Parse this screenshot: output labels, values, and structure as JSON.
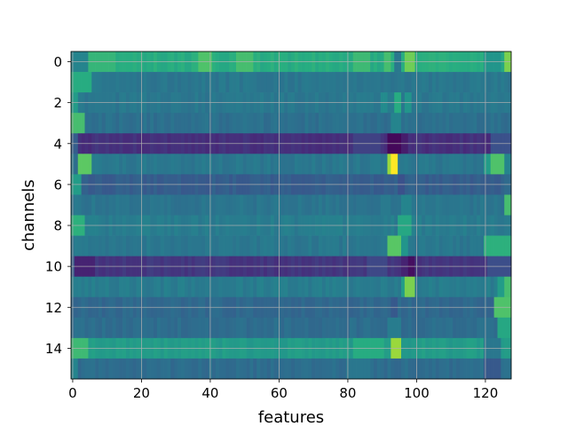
{
  "chart_data": {
    "type": "heatmap",
    "title": "",
    "xlabel": "features",
    "ylabel": "channels",
    "xlim": [
      -0.5,
      127.5
    ],
    "ylim": [
      15.5,
      -0.5
    ],
    "x_ticks": [
      0,
      20,
      40,
      60,
      80,
      100,
      120
    ],
    "y_ticks": [
      0,
      2,
      4,
      6,
      8,
      10,
      12,
      14
    ],
    "grid": true,
    "colormap": "viridis",
    "value_range": [
      0,
      1
    ],
    "n_features": 128,
    "rows": [
      {
        "channel": 0,
        "base": 0.62,
        "features": [
          {
            "x0": 0,
            "x1": 4,
            "v": 0.45
          },
          {
            "x0": 5,
            "x1": 12,
            "v": 0.66
          },
          {
            "x0": 37,
            "x1": 40,
            "v": 0.72
          },
          {
            "x0": 48,
            "x1": 52,
            "v": 0.7
          },
          {
            "x0": 82,
            "x1": 86,
            "v": 0.68
          },
          {
            "x0": 91,
            "x1": 92,
            "v": 0.7
          },
          {
            "x0": 94,
            "x1": 95,
            "v": 0.4
          },
          {
            "x0": 97,
            "x1": 99,
            "v": 0.78
          },
          {
            "x0": 120,
            "x1": 124,
            "v": 0.52
          },
          {
            "x0": 126,
            "x1": 127,
            "v": 0.8
          }
        ]
      },
      {
        "channel": 1,
        "base": 0.4,
        "features": [
          {
            "x0": 0,
            "x1": 5,
            "v": 0.62
          }
        ]
      },
      {
        "channel": 2,
        "base": 0.4,
        "features": [
          {
            "x0": 0,
            "x1": 1,
            "v": 0.55
          },
          {
            "x0": 90,
            "x1": 91,
            "v": 0.48
          },
          {
            "x0": 94,
            "x1": 95,
            "v": 0.62
          },
          {
            "x0": 97,
            "x1": 98,
            "v": 0.52
          }
        ]
      },
      {
        "channel": 3,
        "base": 0.37,
        "features": [
          {
            "x0": 0,
            "x1": 3,
            "v": 0.7
          },
          {
            "x0": 93,
            "x1": 95,
            "v": 0.45
          }
        ]
      },
      {
        "channel": 4,
        "base": 0.14,
        "features": [
          {
            "x0": 0,
            "x1": 1,
            "v": 0.3
          },
          {
            "x0": 82,
            "x1": 89,
            "v": 0.2
          },
          {
            "x0": 92,
            "x1": 95,
            "v": 0.02
          },
          {
            "x0": 96,
            "x1": 97,
            "v": 0.08
          },
          {
            "x0": 122,
            "x1": 127,
            "v": 0.25
          }
        ]
      },
      {
        "channel": 5,
        "base": 0.4,
        "features": [
          {
            "x0": 1,
            "x1": 1,
            "v": 0.35
          },
          {
            "x0": 2,
            "x1": 5,
            "v": 0.75
          },
          {
            "x0": 92,
            "x1": 92,
            "v": 0.85
          },
          {
            "x0": 93,
            "x1": 94,
            "v": 1.0
          },
          {
            "x0": 120,
            "x1": 121,
            "v": 0.55
          },
          {
            "x0": 122,
            "x1": 125,
            "v": 0.72
          },
          {
            "x0": 126,
            "x1": 127,
            "v": 0.45
          }
        ]
      },
      {
        "channel": 6,
        "base": 0.3,
        "features": [
          {
            "x0": 0,
            "x1": 2,
            "v": 0.55
          },
          {
            "x0": 95,
            "x1": 96,
            "v": 0.25
          },
          {
            "x0": 126,
            "x1": 127,
            "v": 0.35
          }
        ]
      },
      {
        "channel": 7,
        "base": 0.39,
        "features": [
          {
            "x0": 96,
            "x1": 98,
            "v": 0.45
          },
          {
            "x0": 126,
            "x1": 127,
            "v": 0.7
          }
        ]
      },
      {
        "channel": 8,
        "base": 0.42,
        "features": [
          {
            "x0": 0,
            "x1": 3,
            "v": 0.64
          },
          {
            "x0": 95,
            "x1": 98,
            "v": 0.6
          }
        ]
      },
      {
        "channel": 9,
        "base": 0.4,
        "features": [
          {
            "x0": 92,
            "x1": 95,
            "v": 0.74
          },
          {
            "x0": 96,
            "x1": 97,
            "v": 0.52
          },
          {
            "x0": 120,
            "x1": 127,
            "v": 0.64
          }
        ]
      },
      {
        "channel": 10,
        "base": 0.16,
        "features": [
          {
            "x0": 0,
            "x1": 1,
            "v": 0.28
          },
          {
            "x0": 1,
            "x1": 6,
            "v": 0.1
          },
          {
            "x0": 86,
            "x1": 91,
            "v": 0.22
          },
          {
            "x0": 96,
            "x1": 97,
            "v": 0.1
          },
          {
            "x0": 98,
            "x1": 99,
            "v": 0.04
          },
          {
            "x0": 121,
            "x1": 127,
            "v": 0.24
          }
        ]
      },
      {
        "channel": 11,
        "base": 0.42,
        "features": [
          {
            "x0": 96,
            "x1": 96,
            "v": 0.55
          },
          {
            "x0": 97,
            "x1": 99,
            "v": 0.8
          },
          {
            "x0": 124,
            "x1": 125,
            "v": 0.55
          },
          {
            "x0": 126,
            "x1": 127,
            "v": 0.7
          }
        ]
      },
      {
        "channel": 12,
        "base": 0.34,
        "features": [
          {
            "x0": 93,
            "x1": 94,
            "v": 0.28
          },
          {
            "x0": 123,
            "x1": 127,
            "v": 0.72
          }
        ]
      },
      {
        "channel": 13,
        "base": 0.36,
        "features": [
          {
            "x0": 92,
            "x1": 95,
            "v": 0.42
          },
          {
            "x0": 124,
            "x1": 127,
            "v": 0.6
          }
        ]
      },
      {
        "channel": 14,
        "base": 0.55,
        "features": [
          {
            "x0": 0,
            "x1": 4,
            "v": 0.68
          },
          {
            "x0": 82,
            "x1": 90,
            "v": 0.62
          },
          {
            "x0": 93,
            "x1": 95,
            "v": 0.85
          },
          {
            "x0": 120,
            "x1": 124,
            "v": 0.4
          }
        ]
      },
      {
        "channel": 15,
        "base": 0.36,
        "features": [
          {
            "x0": 0,
            "x1": 1,
            "v": 0.45
          },
          {
            "x0": 80,
            "x1": 86,
            "v": 0.4
          },
          {
            "x0": 120,
            "x1": 124,
            "v": 0.28
          }
        ]
      }
    ]
  }
}
